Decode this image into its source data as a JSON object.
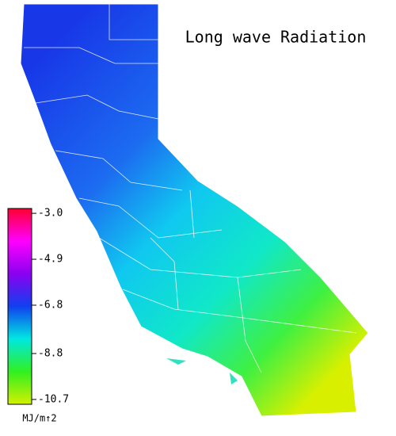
{
  "title": "Long wave Radiation",
  "colorbar": {
    "lim": [
      -10.9,
      -2.8
    ],
    "ticks": [
      {
        "value": -3.0,
        "label": "-3.0"
      },
      -4.9,
      -6.8,
      -8.8,
      -10.7
    ],
    "colors": [
      "#d4f000",
      "#30f020",
      "#00e8e0",
      "#1040f0",
      "#8a00f0",
      "#ff00ff",
      "#ff0030"
    ],
    "unit": "MJ/m↑2"
  }
}
